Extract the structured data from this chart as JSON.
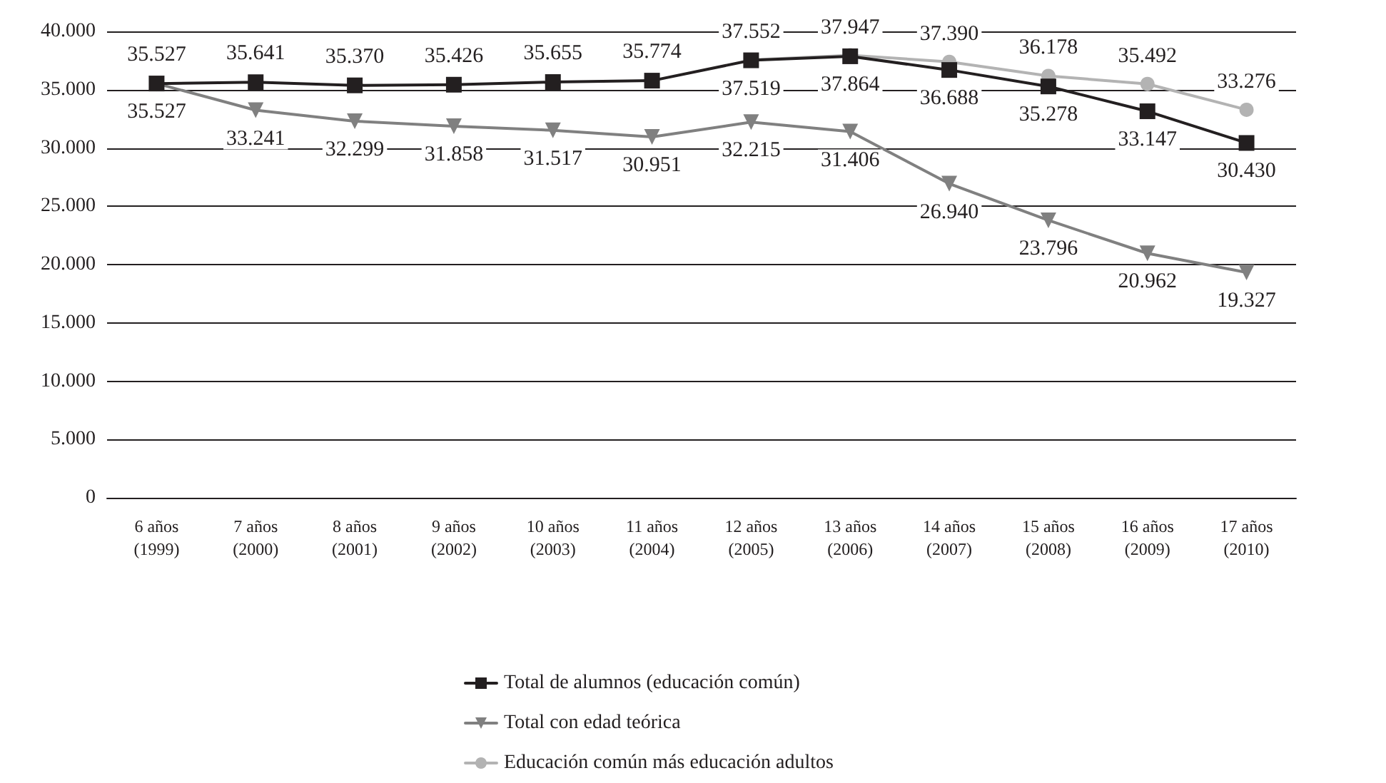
{
  "chart_data": {
    "type": "line",
    "categories": [
      "6 años\n(1999)",
      "7 años\n(2000)",
      "8 años\n(2001)",
      "9 años\n(2002)",
      "10 años\n(2003)",
      "11 años\n(2004)",
      "12 años\n(2005)",
      "13 años\n(2006)",
      "14 años\n(2007)",
      "15 años\n(2008)",
      "16 años\n(2009)",
      "17 años\n(2010)"
    ],
    "series": [
      {
        "name": "Total de alumnos (educación común)",
        "color": "#231f20",
        "marker": "square",
        "values": [
          35527,
          35641,
          35370,
          35426,
          35655,
          35774,
          37519,
          37864,
          36688,
          35278,
          33147,
          30430
        ],
        "value_labels": [
          "35.527",
          "35.641",
          "35.370",
          "35.426",
          "35.655",
          "35.774",
          "37.519",
          "37.864",
          "36.688",
          "35.278",
          "33.147",
          "30.430"
        ]
      },
      {
        "name": "Total con edad teórica",
        "color": "#808080",
        "marker": "triangle",
        "values": [
          35527,
          33241,
          32299,
          31858,
          31517,
          30951,
          32215,
          31406,
          26940,
          23796,
          20962,
          19327
        ],
        "value_labels": [
          "35.527",
          "33.241",
          "32.299",
          "31.858",
          "31.517",
          "30.951",
          "32.215",
          "31.406",
          "26.940",
          "23.796",
          "20.962",
          "19.327"
        ]
      },
      {
        "name": "Educación común más educación adultos",
        "color": "#b3b3b3",
        "marker": "circle",
        "values": [
          null,
          null,
          null,
          null,
          null,
          null,
          37552,
          37947,
          37390,
          36178,
          35492,
          33276
        ],
        "value_labels": [
          null,
          null,
          null,
          null,
          null,
          null,
          "37.552",
          "37.947",
          "37.390",
          "36.178",
          "35.492",
          "33.276"
        ]
      }
    ],
    "ylim": [
      0,
      40000
    ],
    "yticks": [
      {
        "value": 0,
        "label": "0"
      },
      {
        "value": 5000,
        "label": "5.000"
      },
      {
        "value": 10000,
        "label": "10.000"
      },
      {
        "value": 15000,
        "label": "15.000"
      },
      {
        "value": 20000,
        "label": "20.000"
      },
      {
        "value": 25000,
        "label": "25.000"
      },
      {
        "value": 30000,
        "label": "30.000"
      },
      {
        "value": 35000,
        "label": "35.000"
      },
      {
        "value": 40000,
        "label": "40.000"
      }
    ],
    "grid": "y",
    "legend": "bottom",
    "line_style": "solid"
  }
}
